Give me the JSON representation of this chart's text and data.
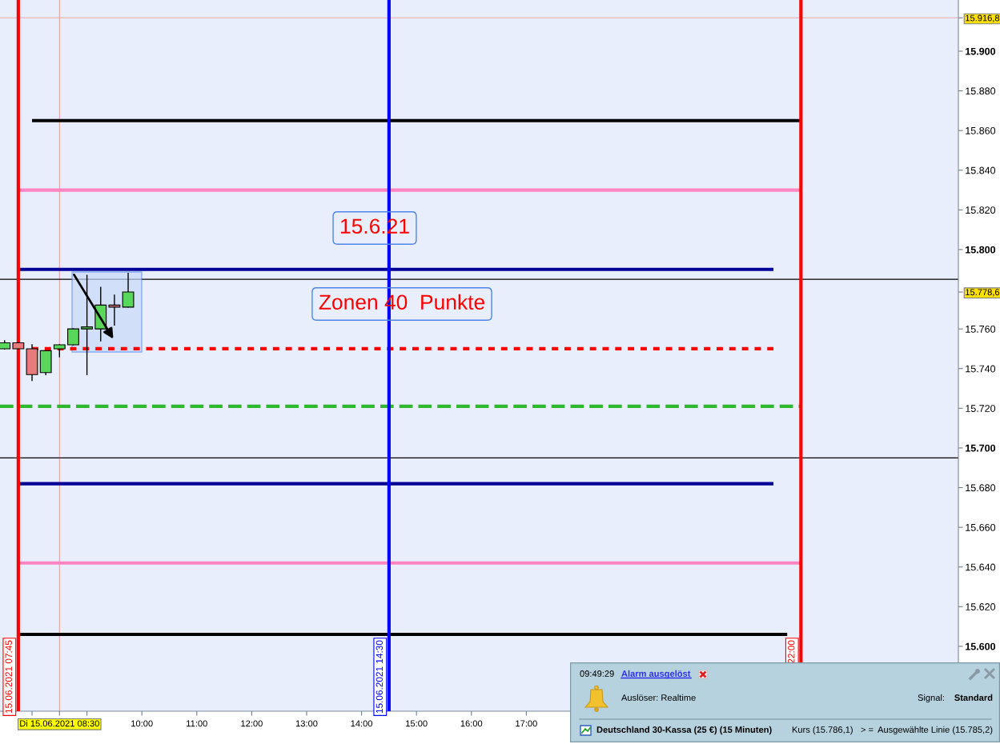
{
  "chart_data": {
    "type": "candlestick",
    "x": [
      "2021-06-15T07:30",
      "2021-06-15T07:45",
      "2021-06-15T08:00",
      "2021-06-15T08:15",
      "2021-06-15T08:30",
      "2021-06-15T08:45",
      "2021-06-15T09:00",
      "2021-06-15T09:15",
      "2021-06-15T09:30",
      "2021-06-15T09:45"
    ],
    "ohlc": [
      [
        15750,
        15754,
        15750,
        15753
      ],
      [
        15753,
        15753,
        15750,
        15750
      ],
      [
        15750,
        15752,
        15734,
        15737
      ],
      [
        15738,
        15749,
        15737,
        15749
      ],
      [
        15750,
        15752,
        15746,
        15752
      ],
      [
        15752,
        15760,
        15752,
        15760
      ],
      [
        15760,
        15787,
        15737,
        15761
      ],
      [
        15760,
        15781,
        15754,
        15772
      ],
      [
        15772,
        15777,
        15762,
        15771
      ],
      [
        15771,
        15788,
        15771,
        15778.6
      ]
    ],
    "series": [
      {
        "type": "line",
        "x": [
          "2021-06-15T08:00",
          "2021-06-15T22:00"
        ],
        "values": [
          15865,
          15865
        ],
        "color": "#000000",
        "line_style": "solid"
      },
      {
        "type": "line",
        "x": [
          "2021-06-15T07:45",
          "2021-06-15T22:00"
        ],
        "values": [
          15830,
          15830
        ],
        "color": "#ff85c0",
        "line_style": "solid"
      },
      {
        "type": "line",
        "x": [
          "2021-06-15T07:45",
          "2021-06-15T21:30"
        ],
        "values": [
          15790,
          15790
        ],
        "color": "#000096",
        "line_style": "solid"
      },
      {
        "type": "line",
        "x": [
          "2021-06-15T08:00",
          "2021-06-15T21:30"
        ],
        "values": [
          15750,
          15750
        ],
        "color": "#ff0000",
        "line_style": "dotted"
      },
      {
        "type": "line",
        "x": [
          "2021-06-15T07:25",
          "2021-06-15T22:00"
        ],
        "values": [
          15721,
          15721
        ],
        "color": "#2db82d",
        "line_style": "dashed"
      },
      {
        "type": "line",
        "x": [
          "2021-06-15T07:45",
          "2021-06-15T21:30"
        ],
        "values": [
          15682,
          15682
        ],
        "color": "#000096",
        "line_style": "solid"
      },
      {
        "type": "line",
        "x": [
          "2021-06-15T07:45",
          "2021-06-15T22:00"
        ],
        "values": [
          15642,
          15642
        ],
        "color": "#ff85c0",
        "line_style": "solid"
      },
      {
        "type": "line",
        "x": [
          "2021-06-15T07:45",
          "2021-06-15T21:45"
        ],
        "values": [
          15606,
          15606
        ],
        "color": "#000000",
        "line_style": "solid"
      }
    ],
    "ref_lines": [
      {
        "axis": "x",
        "value": "2021-06-15T07:45",
        "label": "15.06.2021 07:45",
        "color": "#ff0000"
      },
      {
        "axis": "x",
        "value": "2021-06-15T14:30",
        "label": "15.06.2021 14:30",
        "color": "#0000ff"
      },
      {
        "axis": "x",
        "value": "2021-06-15T22:00",
        "label": "22:00",
        "color": "#ff0000"
      },
      {
        "axis": "x",
        "value": "2021-06-15T08:30",
        "color": "#eea0a0"
      },
      {
        "axis": "y",
        "value": 15916.8,
        "color": "#e6a8a8"
      },
      {
        "axis": "y",
        "value": 15785,
        "color": "#000000"
      },
      {
        "axis": "y",
        "value": 15695,
        "color": "#000000"
      }
    ],
    "xlim": [
      "2021-06-15T07:25",
      "2021-06-16T00:52"
    ],
    "ylim": [
      15567.3,
      15925.8
    ],
    "xticks": [
      {
        "value": "2021-06-15T08:00",
        "label": null
      },
      {
        "value": "2021-06-15T08:30",
        "label": "Di 15.06.2021 08:30"
      },
      {
        "value": "2021-06-15T09:00",
        "label": null
      },
      {
        "value": "2021-06-15T10:00",
        "label": "10:00"
      },
      {
        "value": "2021-06-15T11:00",
        "label": "11:00"
      },
      {
        "value": "2021-06-15T12:00",
        "label": "12:00"
      },
      {
        "value": "2021-06-15T13:00",
        "label": "13:00"
      },
      {
        "value": "2021-06-15T14:00",
        "label": "14:00"
      },
      {
        "value": "2021-06-15T15:00",
        "label": "15:00"
      },
      {
        "value": "2021-06-15T16:00",
        "label": "16:00"
      },
      {
        "value": "2021-06-15T17:00",
        "label": "17:00"
      }
    ],
    "yticks": [
      {
        "value": 15600,
        "label": "15.600"
      },
      {
        "value": 15620,
        "label": "15.620"
      },
      {
        "value": 15640,
        "label": "15.640"
      },
      {
        "value": 15660,
        "label": "15.660"
      },
      {
        "value": 15680,
        "label": "15.680"
      },
      {
        "value": 15700,
        "label": "15.700"
      },
      {
        "value": 15720,
        "label": "15.720"
      },
      {
        "value": 15740,
        "label": "15.740"
      },
      {
        "value": 15760,
        "label": "15.760"
      },
      {
        "value": 15778.6,
        "label": "15.778,6"
      },
      {
        "value": 15800,
        "label": "15.800"
      },
      {
        "value": 15820,
        "label": "15.820"
      },
      {
        "value": 15840,
        "label": "15.840"
      },
      {
        "value": 15860,
        "label": "15.860"
      },
      {
        "value": 15880,
        "label": "15.880"
      },
      {
        "value": 15900,
        "label": "15.900"
      },
      {
        "value": 15916.8,
        "label": "15.916,8"
      }
    ],
    "annotations": [
      "15.6.21",
      "Zonen 40  Punkte",
      "09:49:29",
      "Alarm ausgelöst",
      "Auslöser: Realtime",
      "Signal:",
      "Standard",
      "Deutschland 30-Kassa (25 €) (15 Minuten)",
      "Kurs (15.786,1)",
      "> =",
      "Ausgewählte Linie (15.785,2)"
    ]
  }
}
